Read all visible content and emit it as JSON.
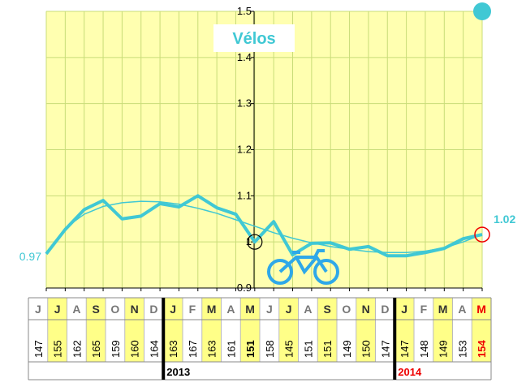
{
  "chart_data": {
    "type": "line",
    "title": "Vélos",
    "categories": [
      "J",
      "J",
      "A",
      "S",
      "O",
      "N",
      "D",
      "J",
      "F",
      "M",
      "A",
      "M",
      "J",
      "J",
      "A",
      "S",
      "O",
      "N",
      "D",
      "J",
      "F",
      "M",
      "A",
      "M"
    ],
    "series": [
      {
        "color": "#40c8d4",
        "values": [
          0.974,
          1.027,
          1.07,
          1.09,
          1.05,
          1.056,
          1.083,
          1.076,
          1.1,
          1.074,
          1.06,
          1.0,
          1.044,
          0.972,
          0.997,
          0.998,
          0.984,
          0.99,
          0.97,
          0.97,
          0.977,
          0.986,
          1.007,
          1.016
        ],
        "value_labels": [
          "0.97",
          null,
          null,
          null,
          null,
          null,
          null,
          null,
          null,
          null,
          null,
          null,
          null,
          null,
          null,
          null,
          null,
          null,
          null,
          null,
          null,
          null,
          null,
          "1.02"
        ]
      },
      {
        "color": "#40c8d4",
        "values": [
          0.974,
          1.03,
          1.06,
          1.077,
          1.085,
          1.088,
          1.087,
          1.082,
          1.073,
          1.062,
          1.048,
          1.034,
          1.02,
          1.008,
          0.998,
          0.99,
          0.984,
          0.979,
          0.977,
          0.977,
          0.98,
          0.987,
          1.0,
          1.016
        ]
      }
    ],
    "ylim": [
      0.9,
      1.5
    ],
    "yticks": [
      0.9,
      1.0,
      1.1,
      1.2,
      1.3,
      1.4,
      1.5
    ],
    "grid": true,
    "counts": [
      "147",
      "155",
      "162",
      "165",
      "159",
      "160",
      "164",
      "163",
      "167",
      "163",
      "161",
      "151",
      "158",
      "145",
      "151",
      "151",
      "149",
      "150",
      "147",
      "147",
      "148",
      "149",
      "153",
      "154"
    ],
    "years": [
      "2013",
      "2014"
    ]
  }
}
